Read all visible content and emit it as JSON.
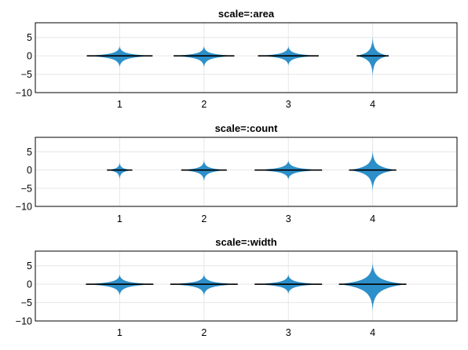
{
  "chart_data": [
    {
      "type": "violin",
      "title": "scale=:area",
      "categories": [
        "1",
        "2",
        "3",
        "4"
      ],
      "y_ticks": [
        "5",
        "0",
        "−5",
        "−10"
      ],
      "y_tick_values": [
        5,
        0,
        -5,
        -10
      ],
      "ylim": [
        -10,
        9
      ],
      "xlim": [
        0,
        5
      ],
      "grid": true,
      "color": "#2d8fc9",
      "violins": [
        {
          "x": 1,
          "median": 0,
          "min": -3.5,
          "max": 3.0,
          "width": 0.39
        },
        {
          "x": 2,
          "median": 0,
          "min": -3.5,
          "max": 3.0,
          "width": 0.36
        },
        {
          "x": 3,
          "median": 0,
          "min": -3.0,
          "max": 3.0,
          "width": 0.36
        },
        {
          "x": 4,
          "median": 0,
          "min": -6.5,
          "max": 6.0,
          "width": 0.19
        }
      ]
    },
    {
      "type": "violin",
      "title": "scale=:count",
      "categories": [
        "1",
        "2",
        "3",
        "4"
      ],
      "y_ticks": [
        "5",
        "0",
        "−5",
        "−10"
      ],
      "y_tick_values": [
        5,
        0,
        -5,
        -10
      ],
      "ylim": [
        -10,
        9
      ],
      "xlim": [
        0,
        5
      ],
      "grid": true,
      "color": "#2d8fc9",
      "violins": [
        {
          "x": 1,
          "median": 0,
          "min": -3.0,
          "max": 2.5,
          "width": 0.15
        },
        {
          "x": 2,
          "median": 0,
          "min": -3.5,
          "max": 3.0,
          "width": 0.27
        },
        {
          "x": 3,
          "median": 0,
          "min": -3.0,
          "max": 3.0,
          "width": 0.4
        },
        {
          "x": 4,
          "median": 0,
          "min": -6.5,
          "max": 6.0,
          "width": 0.28
        }
      ]
    },
    {
      "type": "violin",
      "title": "scale=:width",
      "categories": [
        "1",
        "2",
        "3",
        "4"
      ],
      "y_ticks": [
        "5",
        "0",
        "−5",
        "−10"
      ],
      "y_tick_values": [
        5,
        0,
        -5,
        -10
      ],
      "ylim": [
        -10,
        9
      ],
      "xlim": [
        0,
        5
      ],
      "grid": true,
      "color": "#2d8fc9",
      "violins": [
        {
          "x": 1,
          "median": 0,
          "min": -3.5,
          "max": 3.0,
          "width": 0.4
        },
        {
          "x": 2,
          "median": 0,
          "min": -3.5,
          "max": 3.0,
          "width": 0.4
        },
        {
          "x": 3,
          "median": 0,
          "min": -3.0,
          "max": 3.0,
          "width": 0.4
        },
        {
          "x": 4,
          "median": 0,
          "min": -8.0,
          "max": 6.5,
          "width": 0.4
        }
      ]
    }
  ]
}
